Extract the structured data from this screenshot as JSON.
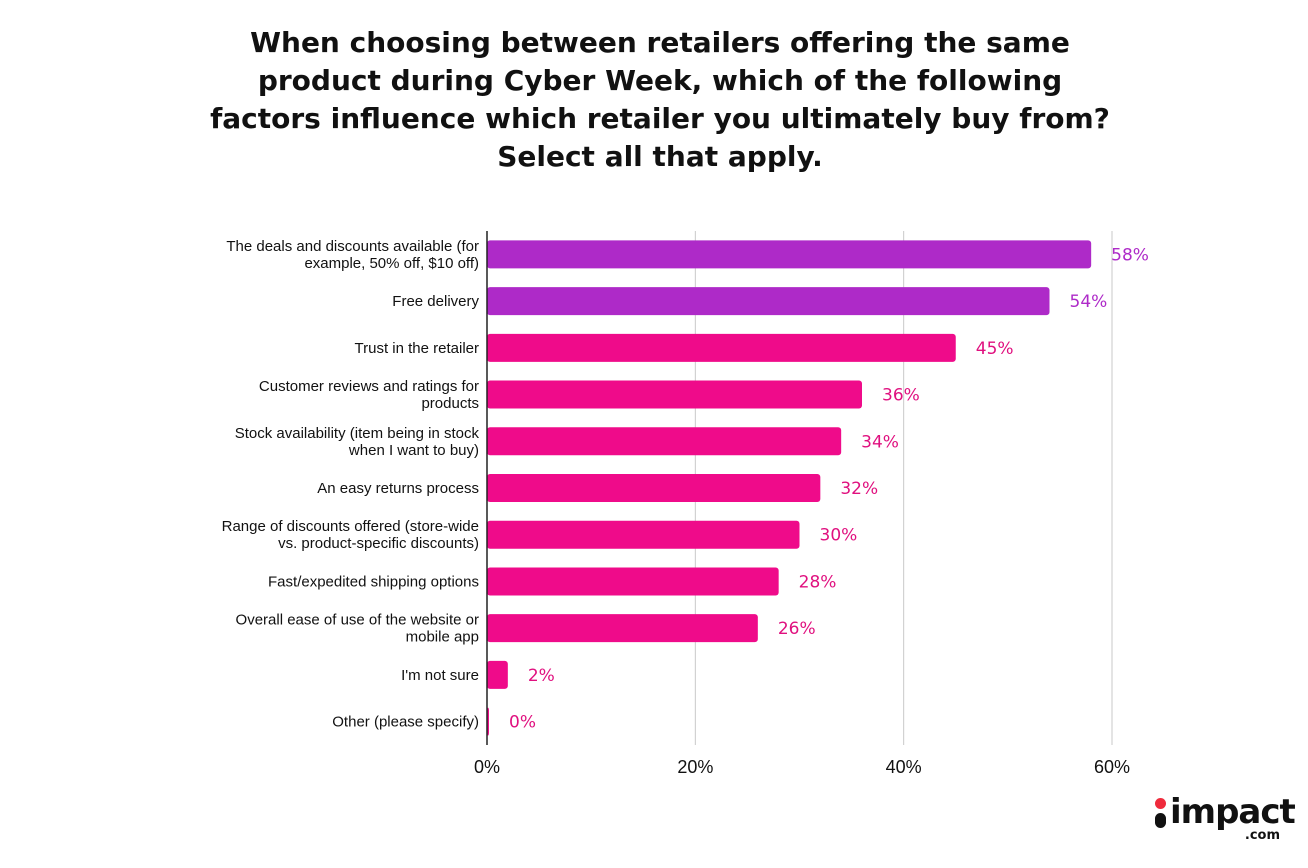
{
  "chart_data": {
    "type": "bar",
    "orientation": "horizontal",
    "title_lines": [
      "When choosing between retailers offering the same",
      "product during Cyber Week, which of the following",
      "factors influence which retailer you ultimately buy from?",
      "Select all that apply."
    ],
    "categories": [
      [
        "The deals and discounts available (for",
        "example, 50% off, $10 off)"
      ],
      [
        "Free delivery"
      ],
      [
        "Trust in the retailer"
      ],
      [
        "Customer reviews and ratings for",
        "products"
      ],
      [
        "Stock availability (item being in stock",
        "when I want to buy)"
      ],
      [
        "An easy returns process"
      ],
      [
        "Range of discounts offered (store-wide",
        "vs. product-specific discounts)"
      ],
      [
        "Fast/expedited shipping options"
      ],
      [
        "Overall ease of use of the website or",
        "mobile app"
      ],
      [
        "I'm not sure"
      ],
      [
        "Other (please specify)"
      ]
    ],
    "values": [
      58,
      54,
      45,
      36,
      34,
      32,
      30,
      28,
      26,
      2,
      0
    ],
    "value_labels": [
      "58%",
      "54%",
      "45%",
      "36%",
      "34%",
      "32%",
      "30%",
      "28%",
      "26%",
      "2%",
      "0%"
    ],
    "bar_colors": [
      "#ae2ac8",
      "#ae2ac8",
      "#ef0b8a",
      "#ef0b8a",
      "#ef0b8a",
      "#ef0b8a",
      "#ef0b8a",
      "#ef0b8a",
      "#ef0b8a",
      "#ef0b8a",
      "#ef0b8a"
    ],
    "label_colors": [
      "#ae2ac8",
      "#ae2ac8",
      "#e0107f",
      "#e0107f",
      "#e0107f",
      "#e0107f",
      "#e0107f",
      "#e0107f",
      "#e0107f",
      "#e0107f",
      "#e0107f"
    ],
    "x_ticks": [
      0,
      20,
      40,
      60
    ],
    "x_tick_labels": [
      "0%",
      "20%",
      "40%",
      "60%"
    ],
    "xlim": [
      0,
      60
    ],
    "grid": true
  },
  "brand": {
    "name": "impact",
    "tld": ".com",
    "dot_color": "#ef2b3c"
  }
}
